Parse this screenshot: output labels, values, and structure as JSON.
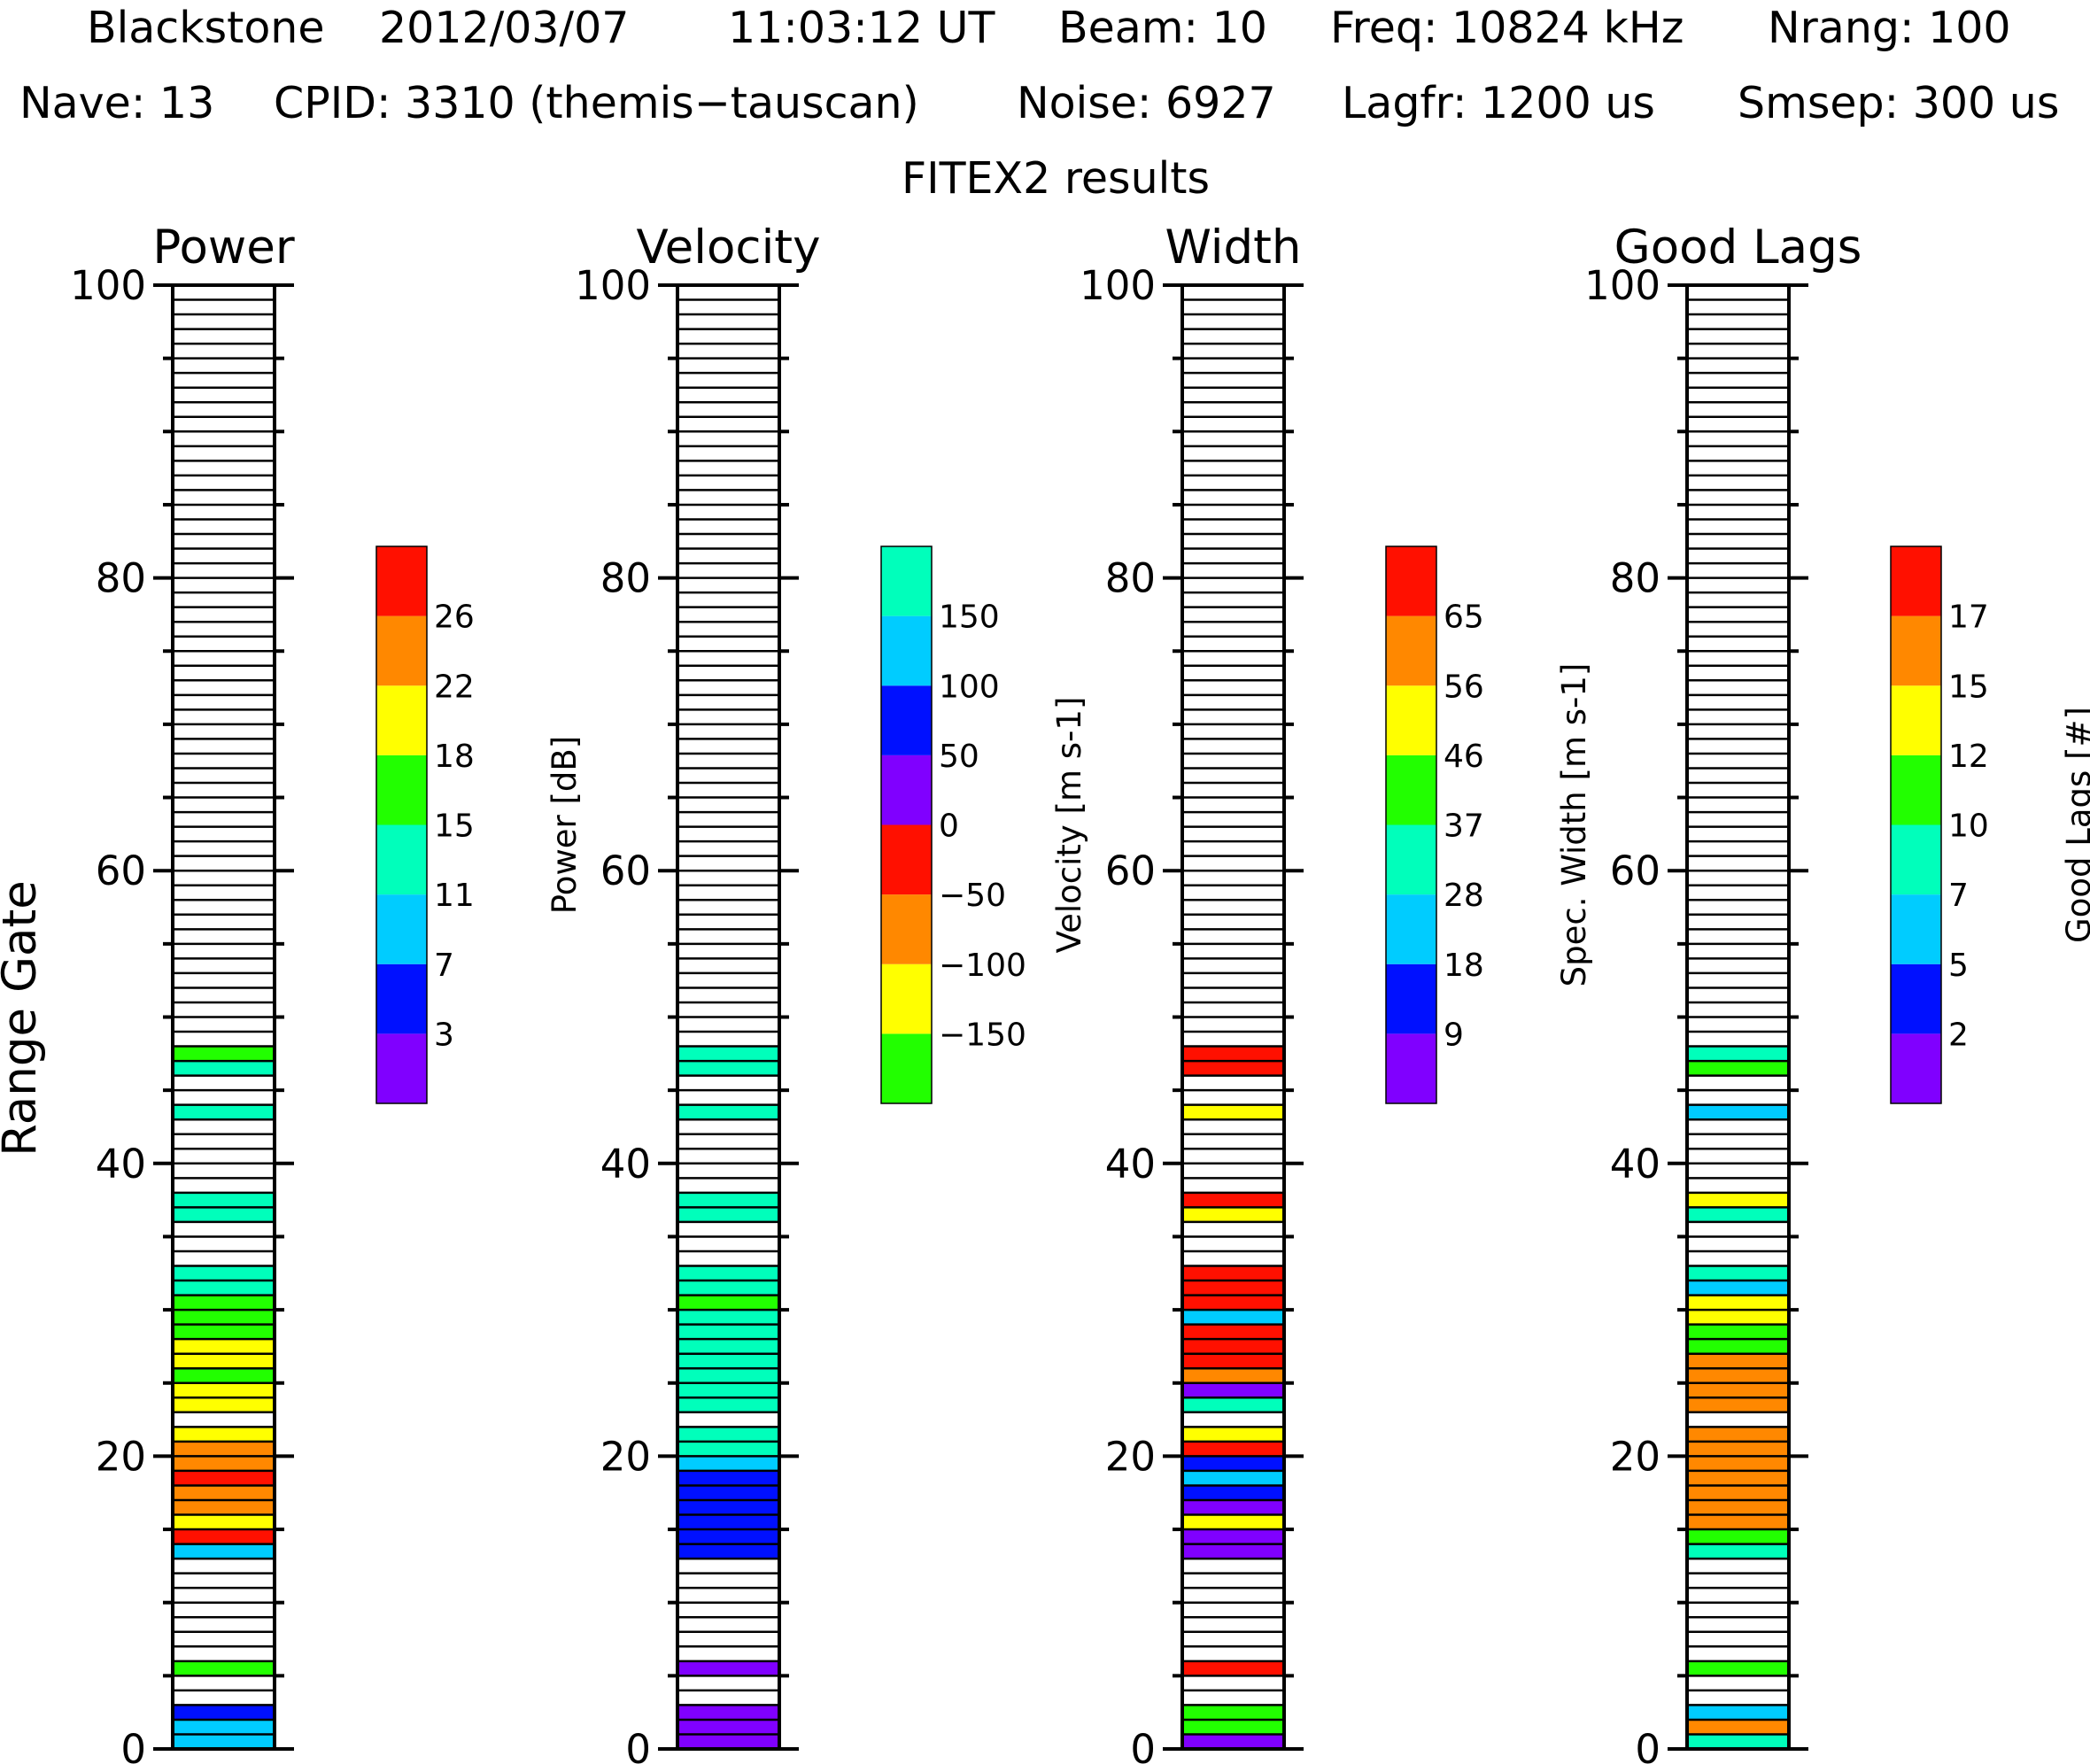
{
  "header": {
    "line1": [
      "Blackstone",
      "2012/03/07",
      "11:03:12 UT",
      "Beam: 10",
      "Freq: 10824 kHz",
      "Nrang: 100"
    ],
    "line2": [
      "Nave: 13",
      "CPID: 3310 (themis−tauscan)",
      "Noise: 6927",
      "Lagfr: 1200 us",
      "Smsep: 300 us"
    ],
    "subtitle": "FITEX2 results"
  },
  "y_axis_label": "Range Gate",
  "chart_data": [
    {
      "type": "heatmap",
      "title": "Power",
      "ylabel": "Range Gate",
      "ylim": [
        0,
        100
      ],
      "yticks": [
        "0",
        "20",
        "40",
        "60",
        "80",
        "100"
      ],
      "colorbar": {
        "label": "Power [dB]",
        "tick_labels": [
          "3",
          "7",
          "11",
          "15",
          "18",
          "22",
          "26"
        ],
        "colors": [
          "#8000ff",
          "#0010ff",
          "#00ccff",
          "#00ffbb",
          "#22ff00",
          "#ffff00",
          "#ff8800",
          "#ff1000"
        ]
      },
      "gates": [
        {
          "gate": 0,
          "bin": 2
        },
        {
          "gate": 1,
          "bin": 2
        },
        {
          "gate": 2,
          "bin": 1
        },
        {
          "gate": 5,
          "bin": 4
        },
        {
          "gate": 13,
          "bin": 2
        },
        {
          "gate": 14,
          "bin": 7
        },
        {
          "gate": 15,
          "bin": 5
        },
        {
          "gate": 16,
          "bin": 6
        },
        {
          "gate": 17,
          "bin": 6
        },
        {
          "gate": 18,
          "bin": 7
        },
        {
          "gate": 19,
          "bin": 6
        },
        {
          "gate": 20,
          "bin": 6
        },
        {
          "gate": 21,
          "bin": 5
        },
        {
          "gate": 23,
          "bin": 5
        },
        {
          "gate": 24,
          "bin": 5
        },
        {
          "gate": 25,
          "bin": 4
        },
        {
          "gate": 26,
          "bin": 5
        },
        {
          "gate": 27,
          "bin": 5
        },
        {
          "gate": 28,
          "bin": 4
        },
        {
          "gate": 29,
          "bin": 4
        },
        {
          "gate": 30,
          "bin": 4
        },
        {
          "gate": 31,
          "bin": 3
        },
        {
          "gate": 32,
          "bin": 3
        },
        {
          "gate": 36,
          "bin": 3
        },
        {
          "gate": 37,
          "bin": 3
        },
        {
          "gate": 43,
          "bin": 3
        },
        {
          "gate": 46,
          "bin": 3
        },
        {
          "gate": 47,
          "bin": 4
        }
      ]
    },
    {
      "type": "heatmap",
      "title": "Velocity",
      "ylabel": "Range Gate",
      "ylim": [
        0,
        100
      ],
      "yticks": [
        "0",
        "20",
        "40",
        "60",
        "80",
        "100"
      ],
      "colorbar": {
        "label": "Velocity [m s-1]",
        "tick_labels": [
          "−150",
          "−100",
          "−50",
          "0",
          "50",
          "100",
          "150"
        ],
        "colors": [
          "#22ff00",
          "#ffff00",
          "#ff8800",
          "#ff1000",
          "#8000ff",
          "#0010ff",
          "#00ccff",
          "#00ffbb"
        ]
      },
      "gates": [
        {
          "gate": 0,
          "bin": 4
        },
        {
          "gate": 1,
          "bin": 4
        },
        {
          "gate": 2,
          "bin": 4
        },
        {
          "gate": 5,
          "bin": 4
        },
        {
          "gate": 13,
          "bin": 5
        },
        {
          "gate": 14,
          "bin": 5
        },
        {
          "gate": 15,
          "bin": 5
        },
        {
          "gate": 16,
          "bin": 5
        },
        {
          "gate": 17,
          "bin": 5
        },
        {
          "gate": 18,
          "bin": 5
        },
        {
          "gate": 19,
          "bin": 6
        },
        {
          "gate": 20,
          "bin": 7
        },
        {
          "gate": 21,
          "bin": 7
        },
        {
          "gate": 23,
          "bin": 7
        },
        {
          "gate": 24,
          "bin": 7
        },
        {
          "gate": 25,
          "bin": 7
        },
        {
          "gate": 26,
          "bin": 7
        },
        {
          "gate": 27,
          "bin": 7
        },
        {
          "gate": 28,
          "bin": 7
        },
        {
          "gate": 29,
          "bin": 7
        },
        {
          "gate": 30,
          "bin": 0
        },
        {
          "gate": 31,
          "bin": 7
        },
        {
          "gate": 32,
          "bin": 7
        },
        {
          "gate": 36,
          "bin": 7
        },
        {
          "gate": 37,
          "bin": 7
        },
        {
          "gate": 43,
          "bin": 7
        },
        {
          "gate": 46,
          "bin": 7
        },
        {
          "gate": 47,
          "bin": 7
        }
      ]
    },
    {
      "type": "heatmap",
      "title": "Width",
      "ylabel": "Range Gate",
      "ylim": [
        0,
        100
      ],
      "yticks": [
        "0",
        "20",
        "40",
        "60",
        "80",
        "100"
      ],
      "colorbar": {
        "label": "Spec. Width [m s-1]",
        "tick_labels": [
          "9",
          "18",
          "28",
          "37",
          "46",
          "56",
          "65"
        ],
        "colors": [
          "#8000ff",
          "#0010ff",
          "#00ccff",
          "#00ffbb",
          "#22ff00",
          "#ffff00",
          "#ff8800",
          "#ff1000"
        ]
      },
      "gates": [
        {
          "gate": 0,
          "bin": 0
        },
        {
          "gate": 1,
          "bin": 4
        },
        {
          "gate": 2,
          "bin": 4
        },
        {
          "gate": 5,
          "bin": 7
        },
        {
          "gate": 13,
          "bin": 0
        },
        {
          "gate": 14,
          "bin": 0
        },
        {
          "gate": 15,
          "bin": 5
        },
        {
          "gate": 16,
          "bin": 0
        },
        {
          "gate": 17,
          "bin": 1
        },
        {
          "gate": 18,
          "bin": 2
        },
        {
          "gate": 19,
          "bin": 1
        },
        {
          "gate": 20,
          "bin": 7
        },
        {
          "gate": 21,
          "bin": 5
        },
        {
          "gate": 23,
          "bin": 3
        },
        {
          "gate": 24,
          "bin": 0
        },
        {
          "gate": 25,
          "bin": 6
        },
        {
          "gate": 26,
          "bin": 7
        },
        {
          "gate": 27,
          "bin": 7
        },
        {
          "gate": 28,
          "bin": 7
        },
        {
          "gate": 29,
          "bin": 2
        },
        {
          "gate": 30,
          "bin": 7
        },
        {
          "gate": 31,
          "bin": 7
        },
        {
          "gate": 32,
          "bin": 7
        },
        {
          "gate": 36,
          "bin": 5
        },
        {
          "gate": 37,
          "bin": 7
        },
        {
          "gate": 43,
          "bin": 5
        },
        {
          "gate": 46,
          "bin": 7
        },
        {
          "gate": 47,
          "bin": 7
        }
      ]
    },
    {
      "type": "heatmap",
      "title": "Good Lags",
      "ylabel": "Range Gate",
      "ylim": [
        0,
        100
      ],
      "yticks": [
        "0",
        "20",
        "40",
        "60",
        "80",
        "100"
      ],
      "colorbar": {
        "label": "Good Lags [#]",
        "tick_labels": [
          "2",
          "5",
          "7",
          "10",
          "12",
          "15",
          "17"
        ],
        "colors": [
          "#8000ff",
          "#0010ff",
          "#00ccff",
          "#00ffbb",
          "#22ff00",
          "#ffff00",
          "#ff8800",
          "#ff1000"
        ]
      },
      "gates": [
        {
          "gate": 0,
          "bin": 3
        },
        {
          "gate": 1,
          "bin": 6
        },
        {
          "gate": 2,
          "bin": 2
        },
        {
          "gate": 5,
          "bin": 4
        },
        {
          "gate": 13,
          "bin": 3
        },
        {
          "gate": 14,
          "bin": 4
        },
        {
          "gate": 15,
          "bin": 6
        },
        {
          "gate": 16,
          "bin": 6
        },
        {
          "gate": 17,
          "bin": 6
        },
        {
          "gate": 18,
          "bin": 6
        },
        {
          "gate": 19,
          "bin": 6
        },
        {
          "gate": 20,
          "bin": 6
        },
        {
          "gate": 21,
          "bin": 6
        },
        {
          "gate": 23,
          "bin": 6
        },
        {
          "gate": 24,
          "bin": 6
        },
        {
          "gate": 25,
          "bin": 6
        },
        {
          "gate": 26,
          "bin": 6
        },
        {
          "gate": 27,
          "bin": 4
        },
        {
          "gate": 28,
          "bin": 4
        },
        {
          "gate": 29,
          "bin": 5
        },
        {
          "gate": 30,
          "bin": 5
        },
        {
          "gate": 31,
          "bin": 2
        },
        {
          "gate": 32,
          "bin": 3
        },
        {
          "gate": 36,
          "bin": 3
        },
        {
          "gate": 37,
          "bin": 5
        },
        {
          "gate": 43,
          "bin": 2
        },
        {
          "gate": 46,
          "bin": 4
        },
        {
          "gate": 47,
          "bin": 3
        }
      ]
    }
  ]
}
